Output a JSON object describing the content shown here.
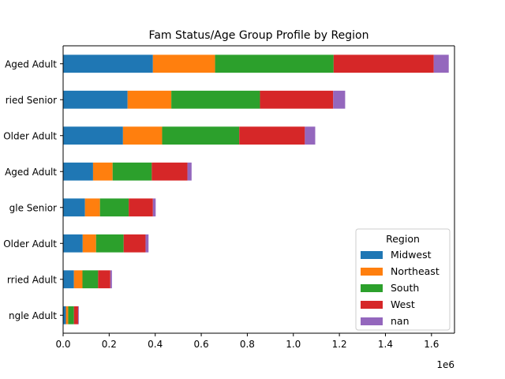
{
  "chart_data": {
    "type": "bar",
    "orientation": "horizontal",
    "stacked": true,
    "title": "Fam Status/Age Group Profile by Region",
    "xlabel": "",
    "ylabel": "",
    "x_offset_label": "1e6",
    "xlim": [
      0,
      1.7
    ],
    "xticks": [
      "0.0",
      "0.2",
      "0.4",
      "0.6",
      "0.8",
      "1.0",
      "1.2",
      "1.4",
      "1.6"
    ],
    "xtick_values": [
      0,
      0.2,
      0.4,
      0.6,
      0.8,
      1.0,
      1.2,
      1.4,
      1.6
    ],
    "grid": false,
    "legend": {
      "title": "Region",
      "placement": "lower right"
    },
    "categories": [
      "Aged Adult",
      "ried Senior",
      "Older Adult",
      "Aged Adult",
      "gle Senior",
      "Older Adult",
      "rried Adult",
      "ngle Adult"
    ],
    "series": [
      {
        "name": "Midwest",
        "color": "#1f77b4",
        "values": [
          0.39,
          0.28,
          0.26,
          0.13,
          0.095,
          0.085,
          0.047,
          0.012
        ]
      },
      {
        "name": "Northeast",
        "color": "#ff7f0e",
        "values": [
          0.27,
          0.19,
          0.17,
          0.085,
          0.065,
          0.058,
          0.037,
          0.01
        ]
      },
      {
        "name": "South",
        "color": "#2ca02c",
        "values": [
          0.515,
          0.385,
          0.335,
          0.17,
          0.125,
          0.12,
          0.068,
          0.025
        ]
      },
      {
        "name": "West",
        "color": "#d62728",
        "values": [
          0.435,
          0.318,
          0.285,
          0.155,
          0.105,
          0.095,
          0.053,
          0.018
        ]
      },
      {
        "name": "nan",
        "color": "#9467bd",
        "values": [
          0.065,
          0.052,
          0.045,
          0.018,
          0.012,
          0.013,
          0.007,
          0.003
        ]
      }
    ]
  }
}
